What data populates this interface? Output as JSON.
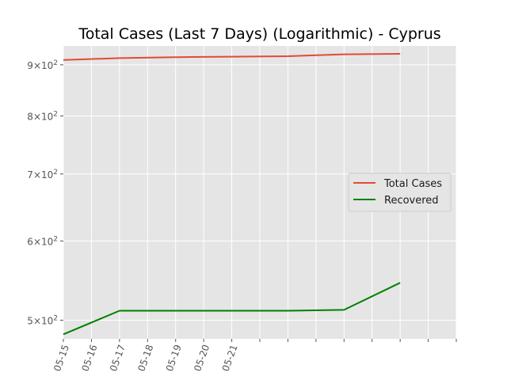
{
  "chart_data": {
    "type": "line",
    "title": "Total Cases (Last 7 Days) (Logarithmic) - Cyprus",
    "xlabel": "",
    "ylabel": "",
    "yscale": "log",
    "ylim": [
      479,
      940
    ],
    "xlim": [
      "2020-05-15",
      "2020-05-29"
    ],
    "xticks": [
      "05-15",
      "05-16",
      "05-17",
      "05-18",
      "05-19",
      "05-20",
      "05-21",
      "",
      "",
      "",
      "",
      "",
      "",
      "",
      ""
    ],
    "yticks": [
      {
        "value": 500,
        "base": "5",
        "label": "5 × 10²"
      },
      {
        "value": 600,
        "base": "6",
        "label": "6 × 10²"
      },
      {
        "value": 700,
        "base": "7",
        "label": "7 × 10²"
      },
      {
        "value": 800,
        "base": "8",
        "label": "8 × 10²"
      },
      {
        "value": 900,
        "base": "9",
        "label": "9 × 10²"
      }
    ],
    "exponent": "2",
    "grid": true,
    "legend_position": "center-right",
    "series": [
      {
        "name": "Total Cases",
        "color": "#e24a33",
        "points": [
          {
            "x": "2020-05-15",
            "y": 910
          },
          {
            "x": "2020-05-17",
            "y": 914
          },
          {
            "x": "2020-05-19",
            "y": 916
          },
          {
            "x": "2020-05-21",
            "y": 917
          },
          {
            "x": "2020-05-23",
            "y": 918
          },
          {
            "x": "2020-05-25",
            "y": 922
          },
          {
            "x": "2020-05-27",
            "y": 923
          }
        ]
      },
      {
        "name": "Recovered",
        "color": "#008000",
        "points": [
          {
            "x": "2020-05-15",
            "y": 484
          },
          {
            "x": "2020-05-17",
            "y": 511
          },
          {
            "x": "2020-05-19",
            "y": 511
          },
          {
            "x": "2020-05-21",
            "y": 511
          },
          {
            "x": "2020-05-23",
            "y": 511
          },
          {
            "x": "2020-05-25",
            "y": 512
          },
          {
            "x": "2020-05-27",
            "y": 545
          }
        ]
      }
    ]
  }
}
